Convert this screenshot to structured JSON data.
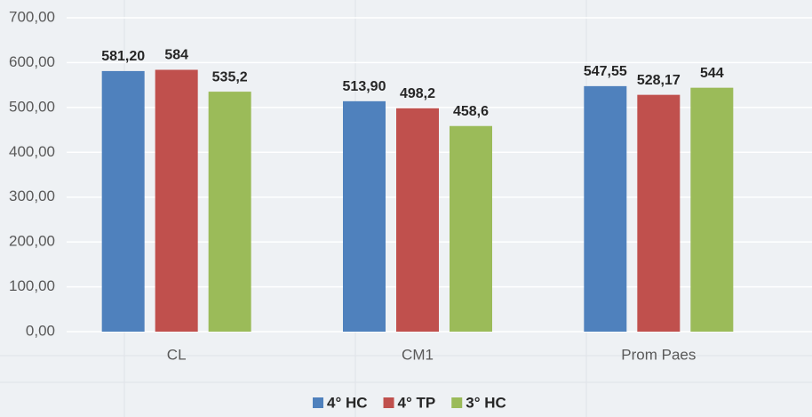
{
  "chart_data": {
    "type": "bar",
    "categories": [
      "CL",
      "CM1",
      "Prom Paes"
    ],
    "series": [
      {
        "name": "4° HC",
        "color": "#4f81bd",
        "values": [
          581.2,
          513.9,
          547.55
        ],
        "value_labels": [
          "581,20",
          "513,90",
          "547,55"
        ]
      },
      {
        "name": "4° TP",
        "color": "#c0504d",
        "values": [
          584,
          498.2,
          528.17
        ],
        "value_labels": [
          "584",
          "498,2",
          "528,17"
        ]
      },
      {
        "name": "3° HC",
        "color": "#9bbb59",
        "values": [
          535.2,
          458.6,
          544
        ],
        "value_labels": [
          "535,2",
          "458,6",
          "544"
        ]
      }
    ],
    "ylim": [
      0,
      700
    ],
    "yticks": [
      {
        "value": 0,
        "label": "0,00"
      },
      {
        "value": 100,
        "label": "100,00"
      },
      {
        "value": 200,
        "label": "200,00"
      },
      {
        "value": 300,
        "label": "300,00"
      },
      {
        "value": 400,
        "label": "400,00"
      },
      {
        "value": 500,
        "label": "500,00"
      },
      {
        "value": 600,
        "label": "600,00"
      },
      {
        "value": 700,
        "label": "700,00"
      }
    ],
    "grid": true,
    "legend": "bottom"
  }
}
